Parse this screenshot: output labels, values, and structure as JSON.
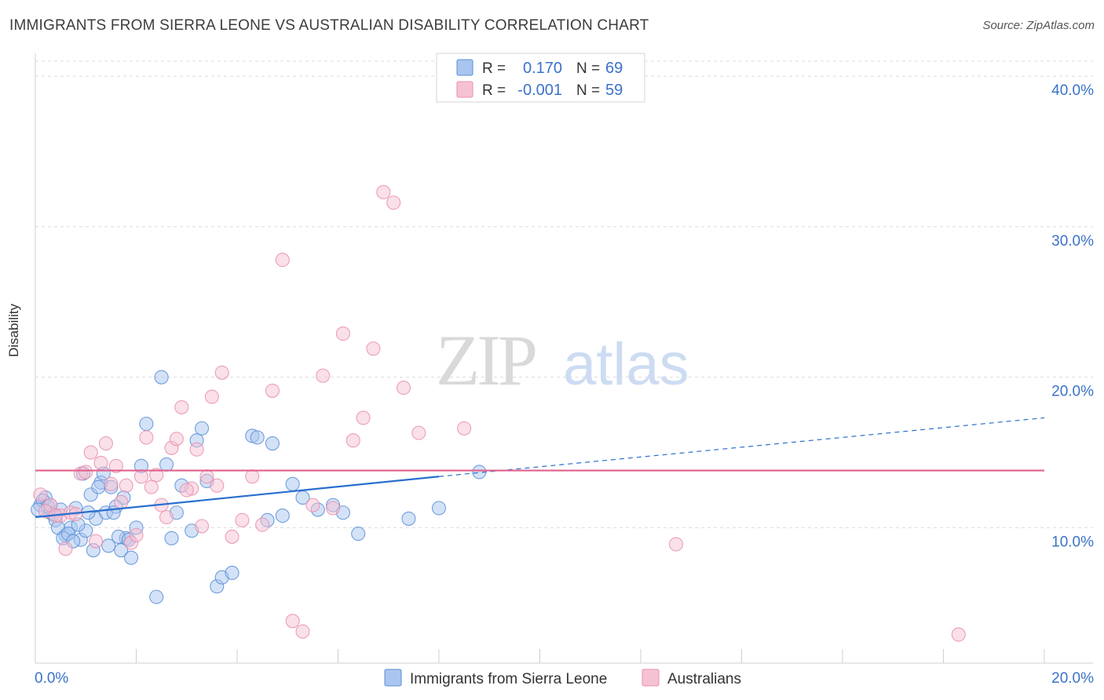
{
  "chart_data": {
    "type": "scatter",
    "title": "IMMIGRANTS FROM SIERRA LEONE VS AUSTRALIAN DISABILITY CORRELATION CHART",
    "source": "Source: ZipAtlas.com",
    "xlabel": "",
    "ylabel": "Disability",
    "xlim": [
      0,
      20
    ],
    "ylim": [
      1,
      41
    ],
    "x_tick_labels": [
      "0.0%",
      "20.0%"
    ],
    "y_tick_labels": [
      "10.0%",
      "20.0%",
      "30.0%",
      "40.0%"
    ],
    "y_ticks": [
      10,
      20,
      30,
      40
    ],
    "grid": true,
    "watermark": "ZIPatlas",
    "legend": {
      "position": "top-center",
      "entries": [
        {
          "r_label": "R =",
          "r_value": "0.170",
          "n_label": "N =",
          "n_value": "69"
        },
        {
          "r_label": "R =",
          "r_value": "-0.001",
          "n_label": "N =",
          "n_value": "59"
        }
      ]
    },
    "bottom_legend": [
      "Immigrants from Sierra Leone",
      "Australians"
    ],
    "colors": {
      "blue": "#5b8fd6",
      "blue_fill": "#a9c6f0",
      "blue_line": "#2a6fcf",
      "pink": "#e98fae",
      "pink_fill": "#f6c2d3",
      "pink_line": "#e0608c",
      "tick_text": "#3b72c8"
    },
    "series": [
      {
        "name": "Immigrants from Sierra Leone",
        "color": "#5b8fd6",
        "trend": {
          "x": [
            0,
            8
          ],
          "y": [
            10.7,
            13.4
          ],
          "dashed_to": [
            20,
            17.3
          ]
        },
        "x": [
          0.1,
          0.2,
          0.3,
          0.4,
          0.5,
          0.6,
          0.7,
          0.8,
          0.9,
          1.0,
          1.1,
          1.2,
          1.3,
          1.4,
          1.5,
          1.6,
          1.7,
          1.8,
          1.9,
          2.0,
          2.1,
          2.2,
          2.4,
          2.5,
          2.6,
          2.7,
          2.8,
          2.9,
          3.1,
          3.2,
          3.3,
          3.4,
          3.6,
          3.7,
          3.9,
          4.3,
          4.4,
          4.6,
          4.7,
          4.9,
          5.1,
          5.3,
          5.6,
          5.9,
          6.1,
          6.4,
          7.4,
          8.0,
          8.8,
          0.15,
          0.25,
          0.35,
          0.45,
          0.55,
          0.65,
          0.75,
          0.85,
          0.95,
          1.05,
          1.15,
          1.25,
          1.35,
          1.45,
          1.55,
          1.65,
          1.75,
          1.85,
          0.05,
          0.3
        ],
        "y": [
          11.5,
          12.0,
          11.0,
          10.5,
          11.2,
          9.5,
          10.0,
          11.3,
          9.2,
          9.8,
          12.2,
          10.6,
          13.0,
          11.0,
          12.7,
          11.4,
          8.5,
          9.3,
          8.0,
          10.0,
          14.1,
          16.9,
          5.4,
          20.0,
          14.2,
          9.3,
          11.0,
          12.8,
          9.8,
          15.8,
          16.6,
          13.1,
          6.1,
          6.7,
          7.0,
          16.1,
          16.0,
          10.5,
          15.6,
          10.8,
          12.9,
          12.0,
          11.2,
          11.5,
          11.0,
          9.6,
          10.6,
          11.3,
          13.7,
          11.8,
          11.4,
          10.9,
          10.0,
          9.3,
          9.6,
          9.1,
          10.2,
          13.6,
          11.0,
          8.5,
          12.7,
          13.6,
          8.8,
          11.0,
          9.4,
          12.0,
          9.2,
          11.2,
          11.5
        ],
        "size": 16
      },
      {
        "name": "Australians",
        "color": "#e98fae",
        "trend": {
          "x": [
            0,
            20
          ],
          "y": [
            13.8,
            13.8
          ]
        },
        "x": [
          0.1,
          0.3,
          0.5,
          0.7,
          0.9,
          1.1,
          1.3,
          1.5,
          1.7,
          1.9,
          2.1,
          2.3,
          2.5,
          2.7,
          2.9,
          3.1,
          3.3,
          3.5,
          3.7,
          3.9,
          4.1,
          4.3,
          4.5,
          4.7,
          4.9,
          5.1,
          5.3,
          5.5,
          5.7,
          5.9,
          6.1,
          6.3,
          6.5,
          6.7,
          6.9,
          7.1,
          7.3,
          7.6,
          8.5,
          12.7,
          18.3,
          0.2,
          0.4,
          0.6,
          0.8,
          1.0,
          1.2,
          1.4,
          1.6,
          1.8,
          2.0,
          2.2,
          2.4,
          2.6,
          2.8,
          3.0,
          3.2,
          3.4,
          3.6
        ],
        "y": [
          12.2,
          11.5,
          10.8,
          11.0,
          13.6,
          15.0,
          14.3,
          12.9,
          11.7,
          9.0,
          13.4,
          12.7,
          11.5,
          15.3,
          18.0,
          12.6,
          10.1,
          18.7,
          20.3,
          9.4,
          10.5,
          13.4,
          10.2,
          19.1,
          27.8,
          3.8,
          3.1,
          11.5,
          20.1,
          11.3,
          22.9,
          15.8,
          17.3,
          21.9,
          32.3,
          31.6,
          19.3,
          16.3,
          16.6,
          8.9,
          2.9,
          11.1,
          10.8,
          8.6,
          10.9,
          13.7,
          9.1,
          15.6,
          14.1,
          12.8,
          9.5,
          16.0,
          13.5,
          10.7,
          15.9,
          12.5,
          15.2,
          13.4,
          12.8
        ],
        "size": 16
      }
    ]
  }
}
